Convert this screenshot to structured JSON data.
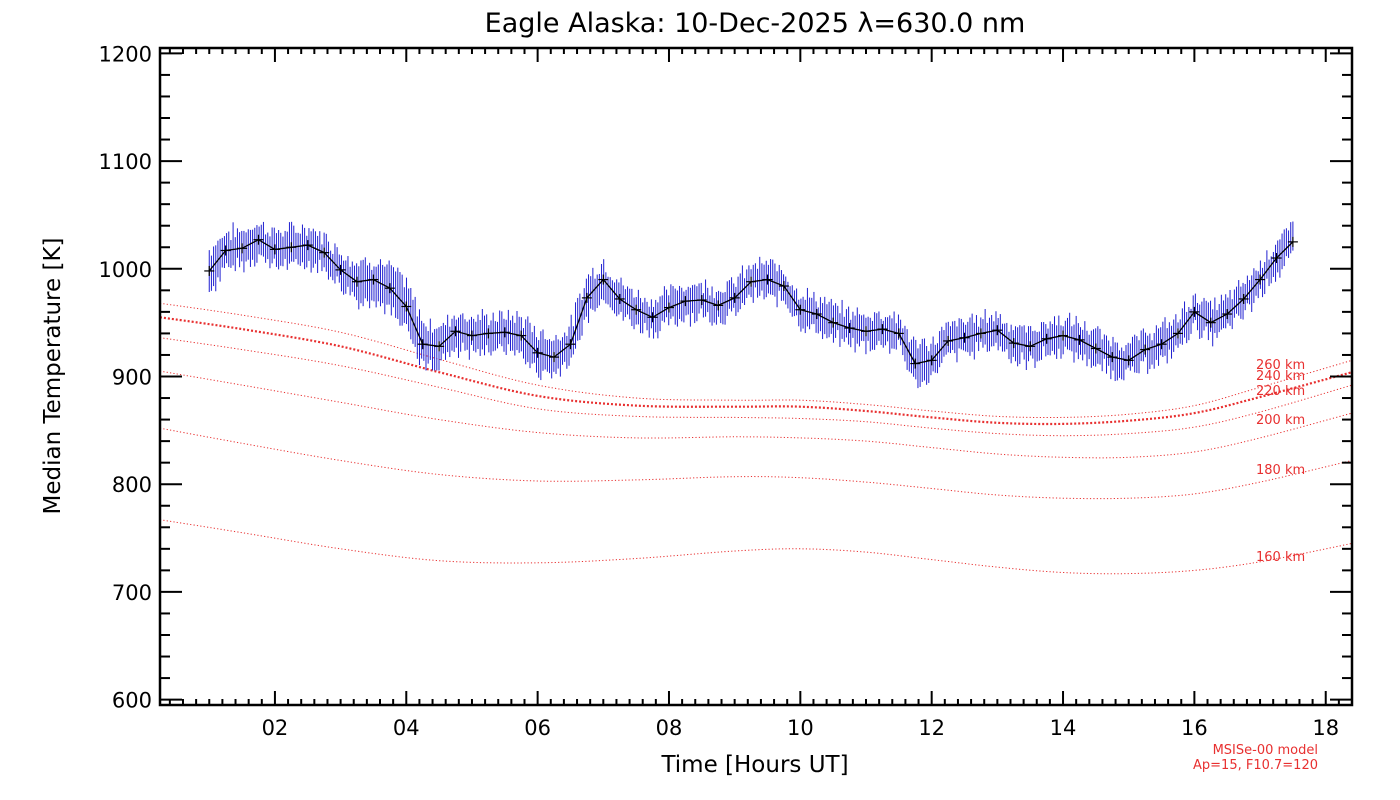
{
  "chart_data": {
    "type": "line",
    "title": "Eagle Alaska: 10-Dec-2025 λ=630.0 nm",
    "xlabel": "Time [Hours UT]",
    "ylabel": "Median Temperature [K]",
    "xlim": [
      0.25,
      18.4
    ],
    "ylim": [
      595,
      1205
    ],
    "x_ticks": [
      2,
      4,
      6,
      8,
      10,
      12,
      14,
      16,
      18
    ],
    "x_tick_labels": [
      "02",
      "04",
      "06",
      "08",
      "10",
      "12",
      "14",
      "16",
      "18"
    ],
    "y_ticks": [
      600,
      700,
      800,
      900,
      1000,
      1100,
      1200
    ],
    "y_tick_labels": [
      "600",
      "700",
      "800",
      "900",
      "1000",
      "1100",
      "1200"
    ],
    "colors": {
      "measurement_errorbar": "#1f1fd0",
      "measurement_line": "#000000",
      "model": "#e83030",
      "axes": "#000000"
    },
    "measurements": {
      "name": "",
      "x": [
        1.0,
        1.25,
        1.5,
        1.75,
        2.0,
        2.25,
        2.5,
        2.75,
        3.0,
        3.25,
        3.5,
        3.75,
        4.0,
        4.25,
        4.5,
        4.75,
        5.0,
        5.25,
        5.5,
        5.75,
        6.0,
        6.25,
        6.5,
        6.75,
        7.0,
        7.25,
        7.5,
        7.75,
        8.0,
        8.25,
        8.5,
        8.75,
        9.0,
        9.25,
        9.5,
        9.75,
        10.0,
        10.25,
        10.5,
        10.75,
        11.0,
        11.25,
        11.5,
        11.75,
        12.0,
        12.25,
        12.5,
        12.75,
        13.0,
        13.25,
        13.5,
        13.75,
        14.0,
        14.25,
        14.5,
        14.75,
        15.0,
        15.25,
        15.5,
        15.75,
        16.0,
        16.25,
        16.5,
        16.75,
        17.0,
        17.25,
        17.5
      ],
      "y": [
        998,
        1017,
        1019,
        1027,
        1018,
        1020,
        1022,
        1015,
        999,
        988,
        990,
        982,
        965,
        930,
        928,
        942,
        938,
        940,
        941,
        938,
        922,
        918,
        930,
        973,
        990,
        972,
        962,
        955,
        964,
        970,
        971,
        966,
        973,
        988,
        990,
        984,
        962,
        958,
        950,
        945,
        942,
        944,
        940,
        912,
        915,
        933,
        936,
        940,
        943,
        931,
        928,
        935,
        938,
        934,
        926,
        918,
        915,
        925,
        930,
        940,
        960,
        950,
        958,
        972,
        990,
        1010,
        1025
      ],
      "error": [
        18,
        16,
        15,
        14,
        15,
        15,
        15,
        14,
        16,
        17,
        17,
        18,
        20,
        20,
        16,
        16,
        16,
        14,
        14,
        16,
        18,
        16,
        16,
        18,
        15,
        14,
        14,
        14,
        14,
        14,
        14,
        14,
        14,
        14,
        14,
        14,
        14,
        14,
        14,
        14,
        14,
        14,
        14,
        16,
        15,
        14,
        14,
        14,
        14,
        14,
        14,
        14,
        14,
        14,
        14,
        14,
        14,
        14,
        14,
        14,
        14,
        14,
        14,
        14,
        14,
        14,
        14
      ]
    },
    "model_series": [
      {
        "name": "160 km",
        "x": [
          0.25,
          1.5,
          3,
          4.5,
          6,
          7.5,
          9,
          10,
          11,
          12,
          13,
          14,
          15,
          16,
          17,
          18.4
        ],
        "values": [
          767,
          755,
          740,
          729,
          727,
          731,
          738,
          740,
          737,
          730,
          723,
          718,
          717,
          720,
          728,
          745
        ]
      },
      {
        "name": "180 km",
        "x": [
          0.25,
          1.5,
          3,
          4.5,
          6,
          7.5,
          9,
          10,
          11,
          12,
          13,
          14,
          15,
          16,
          17,
          18.4
        ],
        "values": [
          852,
          838,
          822,
          809,
          803,
          804,
          807,
          806,
          802,
          796,
          790,
          787,
          787,
          791,
          802,
          822
        ]
      },
      {
        "name": "200 km",
        "x": [
          0.25,
          1.5,
          3,
          4.5,
          6,
          7.5,
          9,
          10,
          11,
          12,
          13,
          14,
          15,
          16,
          17,
          18.4
        ],
        "values": [
          905,
          892,
          876,
          860,
          848,
          843,
          844,
          843,
          840,
          834,
          828,
          825,
          825,
          830,
          843,
          866
        ]
      },
      {
        "name": "220 km",
        "x": [
          0.25,
          1.5,
          3,
          4.5,
          6,
          7.5,
          9,
          10,
          11,
          12,
          13,
          14,
          15,
          16,
          17,
          18.4
        ],
        "values": [
          936,
          925,
          910,
          890,
          870,
          863,
          862,
          861,
          858,
          852,
          847,
          845,
          847,
          853,
          867,
          892
        ]
      },
      {
        "name": "240 km",
        "x": [
          0.25,
          1.5,
          3,
          4.5,
          6,
          7.5,
          9,
          10,
          11,
          12,
          13,
          14,
          15,
          16,
          17,
          18.4
        ],
        "values": [
          955,
          944,
          928,
          904,
          882,
          873,
          872,
          872,
          868,
          862,
          857,
          856,
          859,
          866,
          881,
          904
        ]
      },
      {
        "name": "260 km",
        "x": [
          0.25,
          1.5,
          3,
          4.5,
          6,
          7.5,
          9,
          10,
          11,
          12,
          13,
          14,
          15,
          16,
          17,
          18.4
        ],
        "values": [
          968,
          957,
          941,
          916,
          892,
          880,
          878,
          878,
          874,
          868,
          863,
          862,
          865,
          873,
          890,
          915
        ]
      }
    ],
    "model_note": [
      "MSISe-00 model",
      "Ap=15, F10.7=120"
    ],
    "grid": false,
    "legend": "none"
  }
}
